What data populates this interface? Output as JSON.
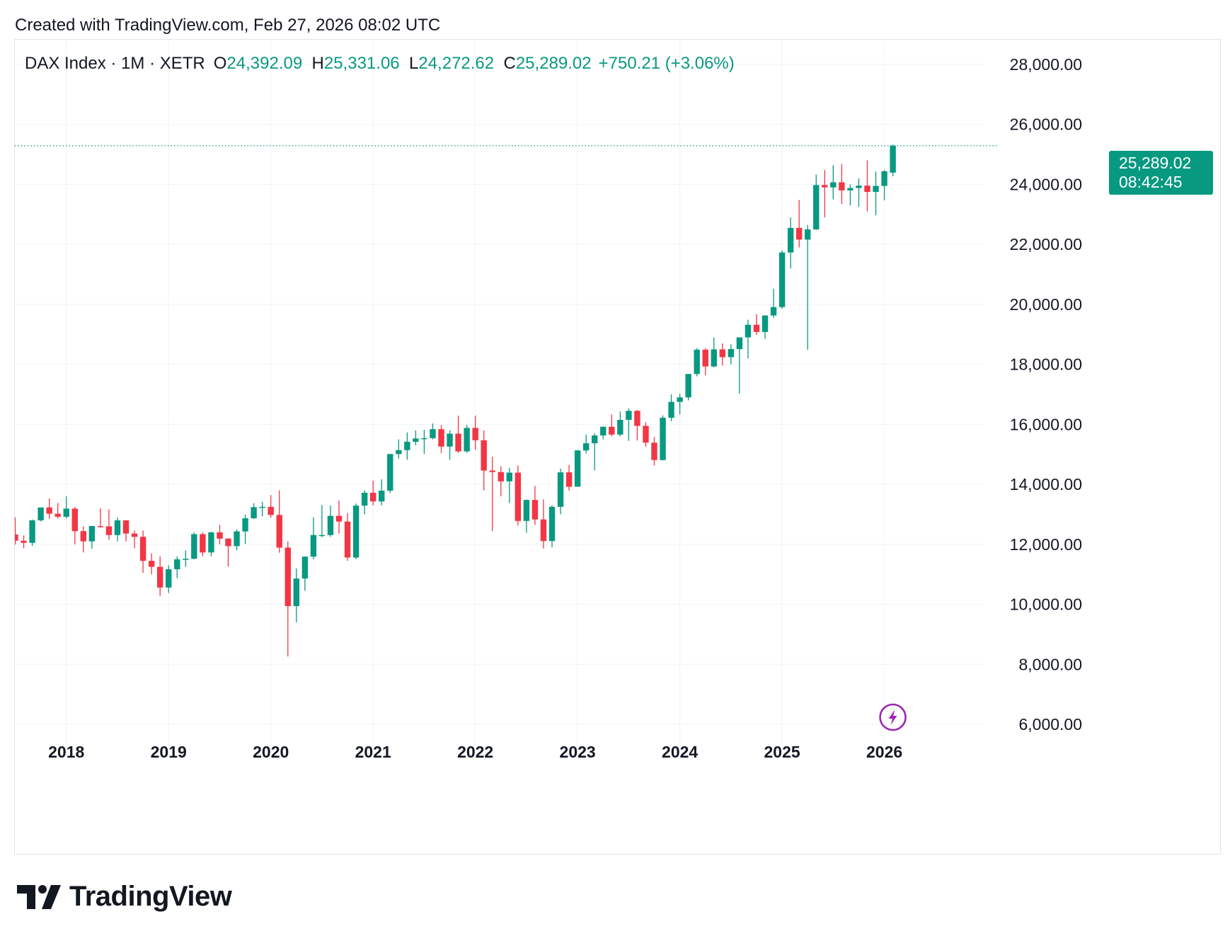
{
  "header": {
    "created_text": "Created with TradingView.com, Feb 27, 2026 08:02 UTC"
  },
  "legend": {
    "symbol": "DAX Index · 1M · XETR",
    "open_label": "O",
    "open_value": "24,392.09",
    "high_label": "H",
    "high_value": "25,331.06",
    "low_label": "L",
    "low_value": "24,272.62",
    "close_label": "C",
    "close_value": "25,289.02",
    "change": "+750.21 (+3.06%)"
  },
  "price_badge": {
    "price": "25,289.02",
    "countdown": "08:42:45"
  },
  "footer": {
    "brand": "TradingView",
    "logo_icon": "tradingview-logo-icon"
  },
  "colors": {
    "up": "#089981",
    "down": "#f23645",
    "grid": "#f0f3fa",
    "axis_text": "#131722",
    "event_icon": "#9c27b0"
  },
  "chart_data": {
    "type": "candlestick",
    "interval": "1M",
    "ylim": [
      5000,
      29400
    ],
    "y_ticks": [
      28000,
      26000,
      24000,
      22000,
      20000,
      18000,
      16000,
      14000,
      12000,
      10000,
      8000,
      6000
    ],
    "y_tick_labels": [
      "28,000.00",
      "26,000.00",
      "24,000.00",
      "22,000.00",
      "20,000.00",
      "18,000.00",
      "16,000.00",
      "14,000.00",
      "12,000.00",
      "10,000.00",
      "8,000.00",
      "6,000.00"
    ],
    "x_ticks": [
      "2018",
      "2019",
      "2020",
      "2021",
      "2022",
      "2023",
      "2024",
      "2025",
      "2026"
    ],
    "x_range": [
      "2017-06",
      "2027-05"
    ],
    "last_price": 25289.02,
    "event_icon": "lightning-icon",
    "event_month": "2026-01",
    "grid": true,
    "candles": [
      {
        "t": "2017-07",
        "o": 12330,
        "h": 12900,
        "l": 11990,
        "c": 12120
      },
      {
        "t": "2017-08",
        "o": 12120,
        "h": 12300,
        "l": 11870,
        "c": 12050
      },
      {
        "t": "2017-09",
        "o": 12050,
        "h": 12830,
        "l": 11950,
        "c": 12800
      },
      {
        "t": "2017-10",
        "o": 12800,
        "h": 13200,
        "l": 12760,
        "c": 13230
      },
      {
        "t": "2017-11",
        "o": 13230,
        "h": 13530,
        "l": 12850,
        "c": 13020
      },
      {
        "t": "2017-12",
        "o": 13020,
        "h": 13380,
        "l": 12860,
        "c": 12920
      },
      {
        "t": "2018-01",
        "o": 12920,
        "h": 13600,
        "l": 12860,
        "c": 13190
      },
      {
        "t": "2018-02",
        "o": 13190,
        "h": 13250,
        "l": 12000,
        "c": 12440
      },
      {
        "t": "2018-03",
        "o": 12440,
        "h": 12600,
        "l": 11730,
        "c": 12100
      },
      {
        "t": "2018-04",
        "o": 12100,
        "h": 12620,
        "l": 11850,
        "c": 12610
      },
      {
        "t": "2018-05",
        "o": 12610,
        "h": 13200,
        "l": 12550,
        "c": 12600
      },
      {
        "t": "2018-06",
        "o": 12600,
        "h": 13170,
        "l": 12150,
        "c": 12310
      },
      {
        "t": "2018-07",
        "o": 12310,
        "h": 12890,
        "l": 12100,
        "c": 12800
      },
      {
        "t": "2018-08",
        "o": 12800,
        "h": 12800,
        "l": 12100,
        "c": 12360
      },
      {
        "t": "2018-09",
        "o": 12360,
        "h": 12460,
        "l": 11870,
        "c": 12250
      },
      {
        "t": "2018-10",
        "o": 12250,
        "h": 12460,
        "l": 11050,
        "c": 11450
      },
      {
        "t": "2018-11",
        "o": 11450,
        "h": 11700,
        "l": 11000,
        "c": 11250
      },
      {
        "t": "2018-12",
        "o": 11250,
        "h": 11600,
        "l": 10280,
        "c": 10560
      },
      {
        "t": "2019-01",
        "o": 10560,
        "h": 11300,
        "l": 10380,
        "c": 11170
      },
      {
        "t": "2019-02",
        "o": 11170,
        "h": 11600,
        "l": 10870,
        "c": 11500
      },
      {
        "t": "2019-03",
        "o": 11500,
        "h": 11800,
        "l": 11250,
        "c": 11520
      },
      {
        "t": "2019-04",
        "o": 11520,
        "h": 12400,
        "l": 11500,
        "c": 12340
      },
      {
        "t": "2019-05",
        "o": 12340,
        "h": 12400,
        "l": 11600,
        "c": 11730
      },
      {
        "t": "2019-06",
        "o": 11730,
        "h": 12420,
        "l": 11600,
        "c": 12400
      },
      {
        "t": "2019-07",
        "o": 12400,
        "h": 12650,
        "l": 12000,
        "c": 12190
      },
      {
        "t": "2019-08",
        "o": 12190,
        "h": 12200,
        "l": 11260,
        "c": 11940
      },
      {
        "t": "2019-09",
        "o": 11940,
        "h": 12500,
        "l": 11800,
        "c": 12430
      },
      {
        "t": "2019-10",
        "o": 12430,
        "h": 12990,
        "l": 12010,
        "c": 12870
      },
      {
        "t": "2019-11",
        "o": 12870,
        "h": 13370,
        "l": 12850,
        "c": 13240
      },
      {
        "t": "2019-12",
        "o": 13240,
        "h": 13420,
        "l": 12940,
        "c": 13250
      },
      {
        "t": "2020-01",
        "o": 13250,
        "h": 13640,
        "l": 12890,
        "c": 12980
      },
      {
        "t": "2020-02",
        "o": 12980,
        "h": 13800,
        "l": 11720,
        "c": 11890
      },
      {
        "t": "2020-03",
        "o": 11890,
        "h": 12100,
        "l": 8260,
        "c": 9940
      },
      {
        "t": "2020-04",
        "o": 9940,
        "h": 11200,
        "l": 9400,
        "c": 10860
      },
      {
        "t": "2020-05",
        "o": 10860,
        "h": 11600,
        "l": 10450,
        "c": 11590
      },
      {
        "t": "2020-06",
        "o": 11590,
        "h": 12900,
        "l": 11500,
        "c": 12310
      },
      {
        "t": "2020-07",
        "o": 12310,
        "h": 13310,
        "l": 12240,
        "c": 12310
      },
      {
        "t": "2020-08",
        "o": 12310,
        "h": 13300,
        "l": 12250,
        "c": 12950
      },
      {
        "t": "2020-09",
        "o": 12950,
        "h": 13460,
        "l": 12360,
        "c": 12760
      },
      {
        "t": "2020-10",
        "o": 12760,
        "h": 13040,
        "l": 11450,
        "c": 11560
      },
      {
        "t": "2020-11",
        "o": 11560,
        "h": 13360,
        "l": 11500,
        "c": 13290
      },
      {
        "t": "2020-12",
        "o": 13290,
        "h": 13800,
        "l": 13000,
        "c": 13720
      },
      {
        "t": "2021-01",
        "o": 13720,
        "h": 14130,
        "l": 13300,
        "c": 13430
      },
      {
        "t": "2021-02",
        "o": 13430,
        "h": 14170,
        "l": 13300,
        "c": 13790
      },
      {
        "t": "2021-03",
        "o": 13790,
        "h": 15010,
        "l": 13710,
        "c": 15010
      },
      {
        "t": "2021-04",
        "o": 15010,
        "h": 15500,
        "l": 14860,
        "c": 15140
      },
      {
        "t": "2021-05",
        "o": 15140,
        "h": 15730,
        "l": 14820,
        "c": 15420
      },
      {
        "t": "2021-06",
        "o": 15420,
        "h": 15800,
        "l": 15300,
        "c": 15530
      },
      {
        "t": "2021-07",
        "o": 15530,
        "h": 15820,
        "l": 15010,
        "c": 15540
      },
      {
        "t": "2021-08",
        "o": 15540,
        "h": 16030,
        "l": 15500,
        "c": 15840
      },
      {
        "t": "2021-09",
        "o": 15840,
        "h": 15980,
        "l": 15040,
        "c": 15260
      },
      {
        "t": "2021-10",
        "o": 15260,
        "h": 15800,
        "l": 14820,
        "c": 15690
      },
      {
        "t": "2021-11",
        "o": 15690,
        "h": 16290,
        "l": 15050,
        "c": 15100
      },
      {
        "t": "2021-12",
        "o": 15100,
        "h": 15980,
        "l": 15050,
        "c": 15880
      },
      {
        "t": "2022-01",
        "o": 15880,
        "h": 16290,
        "l": 15160,
        "c": 15470
      },
      {
        "t": "2022-02",
        "o": 15470,
        "h": 15800,
        "l": 13800,
        "c": 14460
      },
      {
        "t": "2022-03",
        "o": 14460,
        "h": 14920,
        "l": 12440,
        "c": 14410
      },
      {
        "t": "2022-04",
        "o": 14410,
        "h": 14600,
        "l": 13600,
        "c": 14100
      },
      {
        "t": "2022-05",
        "o": 14100,
        "h": 14550,
        "l": 13380,
        "c": 14390
      },
      {
        "t": "2022-06",
        "o": 14390,
        "h": 14630,
        "l": 12620,
        "c": 12780
      },
      {
        "t": "2022-07",
        "o": 12780,
        "h": 13500,
        "l": 12390,
        "c": 13480
      },
      {
        "t": "2022-08",
        "o": 13480,
        "h": 13950,
        "l": 12650,
        "c": 12830
      },
      {
        "t": "2022-09",
        "o": 12830,
        "h": 13500,
        "l": 11860,
        "c": 12110
      },
      {
        "t": "2022-10",
        "o": 12110,
        "h": 13300,
        "l": 11900,
        "c": 13250
      },
      {
        "t": "2022-11",
        "o": 13250,
        "h": 14520,
        "l": 13000,
        "c": 14400
      },
      {
        "t": "2022-12",
        "o": 14400,
        "h": 14650,
        "l": 13790,
        "c": 13920
      },
      {
        "t": "2023-01",
        "o": 13920,
        "h": 15150,
        "l": 13950,
        "c": 15130
      },
      {
        "t": "2023-02",
        "o": 15130,
        "h": 15660,
        "l": 15030,
        "c": 15370
      },
      {
        "t": "2023-03",
        "o": 15370,
        "h": 15700,
        "l": 14460,
        "c": 15630
      },
      {
        "t": "2023-04",
        "o": 15630,
        "h": 15930,
        "l": 15500,
        "c": 15920
      },
      {
        "t": "2023-05",
        "o": 15920,
        "h": 16330,
        "l": 15600,
        "c": 15660
      },
      {
        "t": "2023-06",
        "o": 15660,
        "h": 16430,
        "l": 15600,
        "c": 16150
      },
      {
        "t": "2023-07",
        "o": 16150,
        "h": 16530,
        "l": 15450,
        "c": 16450
      },
      {
        "t": "2023-08",
        "o": 16450,
        "h": 16480,
        "l": 15460,
        "c": 15950
      },
      {
        "t": "2023-09",
        "o": 15950,
        "h": 16070,
        "l": 15250,
        "c": 15390
      },
      {
        "t": "2023-10",
        "o": 15390,
        "h": 15580,
        "l": 14630,
        "c": 14810
      },
      {
        "t": "2023-11",
        "o": 14810,
        "h": 16300,
        "l": 14800,
        "c": 16220
      },
      {
        "t": "2023-12",
        "o": 16220,
        "h": 17000,
        "l": 16100,
        "c": 16750
      },
      {
        "t": "2024-01",
        "o": 16750,
        "h": 17020,
        "l": 16330,
        "c": 16900
      },
      {
        "t": "2024-02",
        "o": 16900,
        "h": 17620,
        "l": 16800,
        "c": 17680
      },
      {
        "t": "2024-03",
        "o": 17680,
        "h": 18540,
        "l": 17600,
        "c": 18490
      },
      {
        "t": "2024-04",
        "o": 18490,
        "h": 18540,
        "l": 17640,
        "c": 17930
      },
      {
        "t": "2024-05",
        "o": 17930,
        "h": 18890,
        "l": 17900,
        "c": 18500
      },
      {
        "t": "2024-06",
        "o": 18500,
        "h": 18700,
        "l": 17960,
        "c": 18240
      },
      {
        "t": "2024-07",
        "o": 18240,
        "h": 18670,
        "l": 18000,
        "c": 18510
      },
      {
        "t": "2024-08",
        "o": 18510,
        "h": 18900,
        "l": 17030,
        "c": 18900
      },
      {
        "t": "2024-09",
        "o": 18900,
        "h": 19490,
        "l": 18200,
        "c": 19320
      },
      {
        "t": "2024-10",
        "o": 19320,
        "h": 19670,
        "l": 18980,
        "c": 19080
      },
      {
        "t": "2024-11",
        "o": 19080,
        "h": 19630,
        "l": 18850,
        "c": 19630
      },
      {
        "t": "2024-12",
        "o": 19630,
        "h": 20520,
        "l": 19550,
        "c": 19910
      },
      {
        "t": "2025-01",
        "o": 19910,
        "h": 21800,
        "l": 19850,
        "c": 21730
      },
      {
        "t": "2025-02",
        "o": 21730,
        "h": 22900,
        "l": 21200,
        "c": 22550
      },
      {
        "t": "2025-03",
        "o": 22550,
        "h": 23480,
        "l": 21900,
        "c": 22160
      },
      {
        "t": "2025-04",
        "o": 22160,
        "h": 22650,
        "l": 18490,
        "c": 22500
      },
      {
        "t": "2025-05",
        "o": 22500,
        "h": 24330,
        "l": 22480,
        "c": 23980
      },
      {
        "t": "2025-06",
        "o": 23980,
        "h": 24480,
        "l": 22900,
        "c": 23900
      },
      {
        "t": "2025-07",
        "o": 23900,
        "h": 24640,
        "l": 23500,
        "c": 24070
      },
      {
        "t": "2025-08",
        "o": 24070,
        "h": 24680,
        "l": 23350,
        "c": 23800
      },
      {
        "t": "2025-09",
        "o": 23800,
        "h": 24000,
        "l": 23300,
        "c": 23880
      },
      {
        "t": "2025-10",
        "o": 23880,
        "h": 24200,
        "l": 23250,
        "c": 23960
      },
      {
        "t": "2025-11",
        "o": 23960,
        "h": 24800,
        "l": 23100,
        "c": 23750
      },
      {
        "t": "2025-12",
        "o": 23750,
        "h": 24430,
        "l": 22970,
        "c": 23950
      },
      {
        "t": "2026-01",
        "o": 23950,
        "h": 24480,
        "l": 23470,
        "c": 24440
      },
      {
        "t": "2026-02",
        "o": 24392.09,
        "h": 25331.06,
        "l": 24272.62,
        "c": 25289.02
      }
    ]
  }
}
